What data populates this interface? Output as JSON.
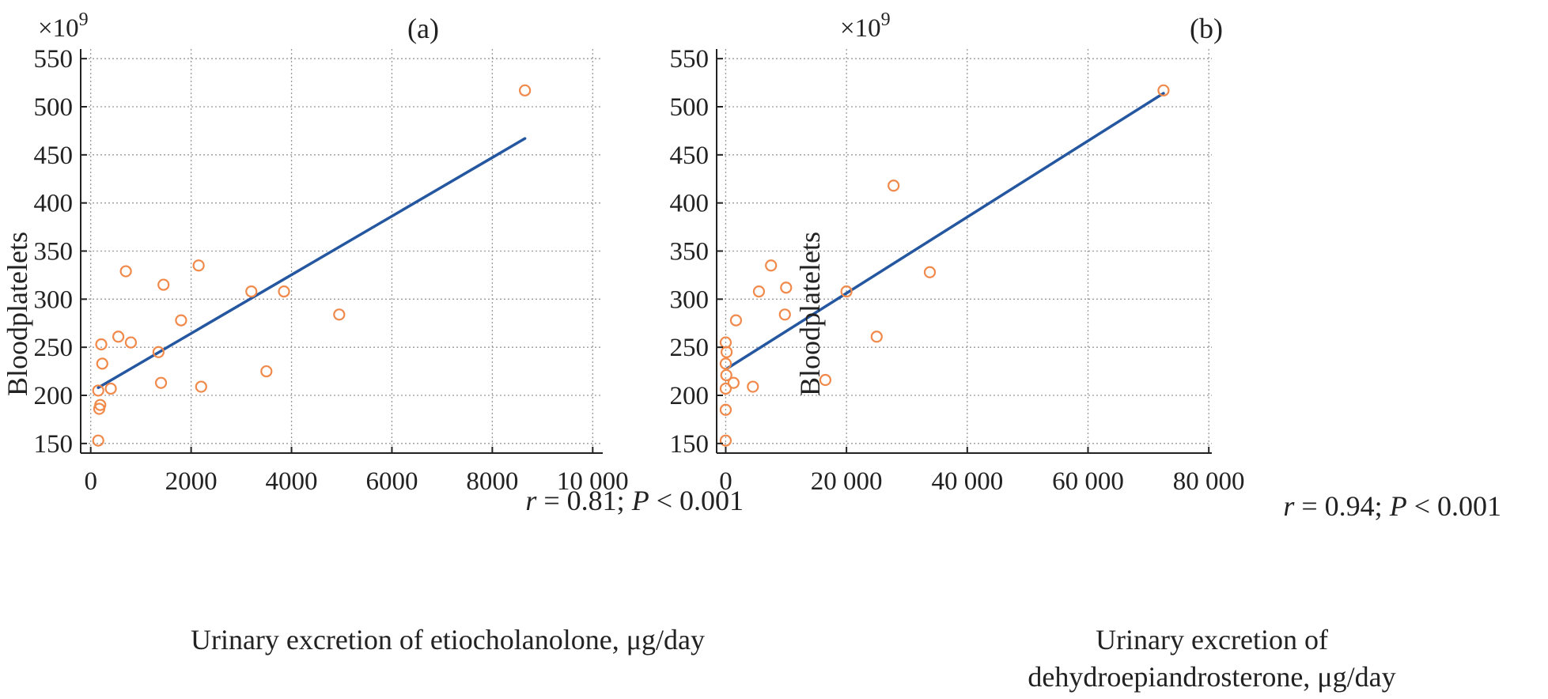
{
  "chart_data": [
    {
      "type": "scatter",
      "title": "(a)",
      "xlabel": "Urinary excretion of etiocholanolone, μg/day",
      "ylabel": "Bloodplatelets",
      "y_multiplier": "×10",
      "y_multiplier_exp": "9",
      "xlim": [
        -200,
        10200
      ],
      "ylim": [
        140,
        560
      ],
      "xticks": [
        0,
        2000,
        4000,
        6000,
        8000,
        10000
      ],
      "xtick_labels": [
        "0",
        "2000",
        "4000",
        "6000",
        "8000",
        "10 000"
      ],
      "yticks": [
        150,
        200,
        250,
        300,
        350,
        400,
        450,
        500,
        550
      ],
      "grid": true,
      "annotation": {
        "r_symbol": "r",
        "r_text": " = 0.81; ",
        "p_symbol": "P",
        "p_text": " < 0.001"
      },
      "fit_line": {
        "x": [
          150,
          8650
        ],
        "y": [
          208,
          467
        ]
      },
      "points": [
        {
          "x": 150,
          "y": 153
        },
        {
          "x": 150,
          "y": 205
        },
        {
          "x": 170,
          "y": 186
        },
        {
          "x": 190,
          "y": 190
        },
        {
          "x": 210,
          "y": 253
        },
        {
          "x": 230,
          "y": 233
        },
        {
          "x": 400,
          "y": 207
        },
        {
          "x": 550,
          "y": 261
        },
        {
          "x": 700,
          "y": 329
        },
        {
          "x": 800,
          "y": 255
        },
        {
          "x": 1350,
          "y": 245
        },
        {
          "x": 1400,
          "y": 213
        },
        {
          "x": 1450,
          "y": 315
        },
        {
          "x": 1800,
          "y": 278
        },
        {
          "x": 2150,
          "y": 335
        },
        {
          "x": 2200,
          "y": 209
        },
        {
          "x": 3200,
          "y": 308
        },
        {
          "x": 3500,
          "y": 225
        },
        {
          "x": 3850,
          "y": 308
        },
        {
          "x": 4950,
          "y": 284
        },
        {
          "x": 8650,
          "y": 517
        }
      ]
    },
    {
      "type": "scatter",
      "title": "(b)",
      "xlabel": "Urinary excretion of",
      "xlabel_line2": "dehydroepiandrosterone, μg/day",
      "ylabel": "Bloodplatelets",
      "y_multiplier": "×10",
      "y_multiplier_exp": "9",
      "xlim": [
        -1500,
        80500
      ],
      "ylim": [
        140,
        560
      ],
      "xticks": [
        0,
        20000,
        40000,
        60000,
        80000
      ],
      "xtick_labels": [
        "0",
        "20 000",
        "40 000",
        "60 000",
        "80 000"
      ],
      "yticks": [
        150,
        200,
        250,
        300,
        350,
        400,
        450,
        500,
        550
      ],
      "grid": true,
      "annotation": {
        "r_symbol": "r",
        "r_text": " = 0.94; ",
        "p_symbol": "P",
        "p_text": " < 0.001"
      },
      "fit_line": {
        "x": [
          0,
          72500
        ],
        "y": [
          227,
          514
        ]
      },
      "points": [
        {
          "x": 0,
          "y": 153
        },
        {
          "x": 0,
          "y": 185
        },
        {
          "x": 0,
          "y": 207
        },
        {
          "x": 100,
          "y": 221
        },
        {
          "x": 0,
          "y": 233
        },
        {
          "x": 150,
          "y": 245
        },
        {
          "x": 0,
          "y": 255
        },
        {
          "x": 1300,
          "y": 213
        },
        {
          "x": 1700,
          "y": 278
        },
        {
          "x": 4500,
          "y": 209
        },
        {
          "x": 5500,
          "y": 308
        },
        {
          "x": 7500,
          "y": 335
        },
        {
          "x": 9800,
          "y": 284
        },
        {
          "x": 10000,
          "y": 312
        },
        {
          "x": 16500,
          "y": 216
        },
        {
          "x": 20000,
          "y": 308
        },
        {
          "x": 25000,
          "y": 261
        },
        {
          "x": 27800,
          "y": 418
        },
        {
          "x": 33800,
          "y": 328
        },
        {
          "x": 72500,
          "y": 517
        }
      ]
    }
  ]
}
